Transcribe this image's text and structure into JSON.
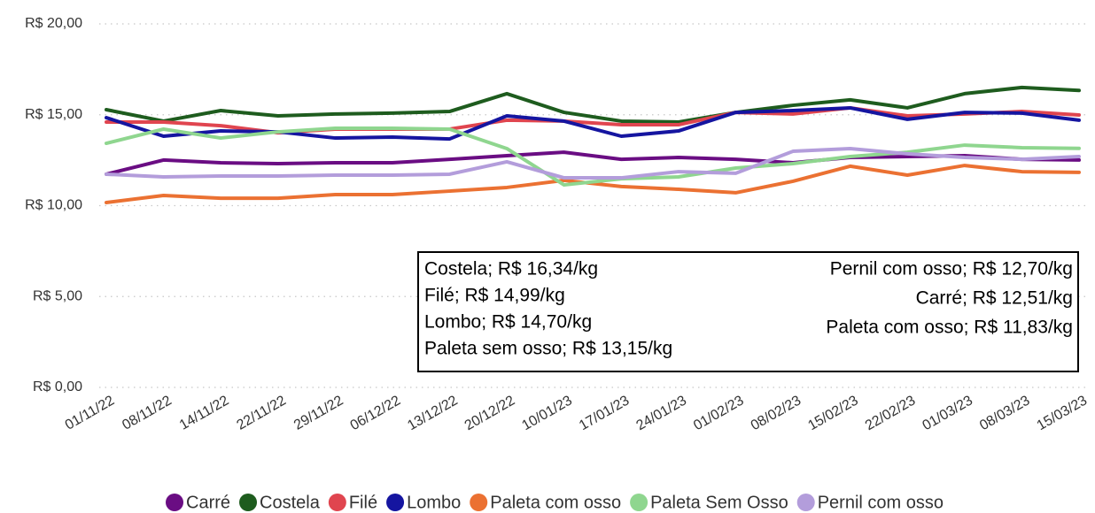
{
  "chart_data": {
    "type": "line",
    "categories": [
      "01/11/22",
      "08/11/22",
      "14/11/22",
      "22/11/22",
      "29/11/22",
      "06/12/22",
      "13/12/22",
      "20/12/22",
      "10/01/23",
      "17/01/23",
      "24/01/23",
      "01/02/23",
      "08/02/23",
      "15/02/23",
      "22/02/23",
      "01/03/23",
      "08/03/23",
      "15/03/23"
    ],
    "series": [
      {
        "name": "Carré",
        "color": "#6a0d83",
        "values": [
          11.73,
          12.51,
          12.36,
          12.31,
          12.36,
          12.36,
          12.55,
          12.75,
          12.94,
          12.55,
          12.65,
          12.55,
          12.36,
          12.65,
          12.7,
          12.75,
          12.55,
          12.51
        ]
      },
      {
        "name": "Costela",
        "color": "#1e5c1e",
        "values": [
          15.28,
          14.65,
          15.23,
          14.94,
          15.04,
          15.09,
          15.18,
          16.16,
          15.13,
          14.65,
          14.6,
          15.13,
          15.52,
          15.82,
          15.38,
          16.16,
          16.5,
          16.34
        ]
      },
      {
        "name": "Filé",
        "color": "#e0454f",
        "values": [
          14.6,
          14.6,
          14.4,
          14.01,
          14.21,
          14.21,
          14.21,
          14.7,
          14.65,
          14.45,
          14.45,
          15.13,
          15.04,
          15.38,
          14.94,
          15.04,
          15.18,
          14.99
        ]
      },
      {
        "name": "Lombo",
        "color": "#1515a0",
        "values": [
          14.84,
          13.82,
          14.11,
          14.06,
          13.72,
          13.77,
          13.67,
          14.94,
          14.65,
          13.82,
          14.11,
          15.13,
          15.23,
          15.38,
          14.75,
          15.13,
          15.09,
          14.7
        ]
      },
      {
        "name": "Paleta com osso",
        "color": "#eb7132",
        "values": [
          10.17,
          10.56,
          10.41,
          10.41,
          10.61,
          10.61,
          10.8,
          11.0,
          11.39,
          11.05,
          10.9,
          10.71,
          11.34,
          12.17,
          11.68,
          12.21,
          11.87,
          11.83
        ]
      },
      {
        "name": "Paleta Sem Osso",
        "color": "#8fd68f",
        "values": [
          13.43,
          14.21,
          13.72,
          14.06,
          14.26,
          14.26,
          14.21,
          13.14,
          11.14,
          11.48,
          11.58,
          12.07,
          12.31,
          12.7,
          12.94,
          13.33,
          13.19,
          13.15
        ]
      },
      {
        "name": "Pernil com osso",
        "color": "#b39ddb",
        "values": [
          11.73,
          11.58,
          11.63,
          11.63,
          11.68,
          11.68,
          11.73,
          12.41,
          11.53,
          11.53,
          11.87,
          11.78,
          12.99,
          13.14,
          12.85,
          12.65,
          12.55,
          12.7
        ]
      }
    ],
    "ylim": [
      0,
      20
    ],
    "yticks": [
      {
        "value": 0,
        "label": "R$ 0,00"
      },
      {
        "value": 5,
        "label": "R$ 5,00"
      },
      {
        "value": 10,
        "label": "R$ 10,00"
      },
      {
        "value": 15,
        "label": "R$ 15,00"
      },
      {
        "value": 20,
        "label": "R$ 20,00"
      }
    ],
    "grid": true,
    "legend": "bottom",
    "annotation_columns": [
      [
        "Costela; R$ 16,34/kg",
        "Filé; R$ 14,99/kg",
        "Lombo; R$ 14,70/kg",
        "Paleta sem osso; R$ 13,15/kg"
      ],
      [
        "Pernil com osso; R$ 12,70/kg",
        "Carré; R$ 12,51/kg",
        "Paleta com osso; R$ 11,83/kg"
      ]
    ]
  }
}
